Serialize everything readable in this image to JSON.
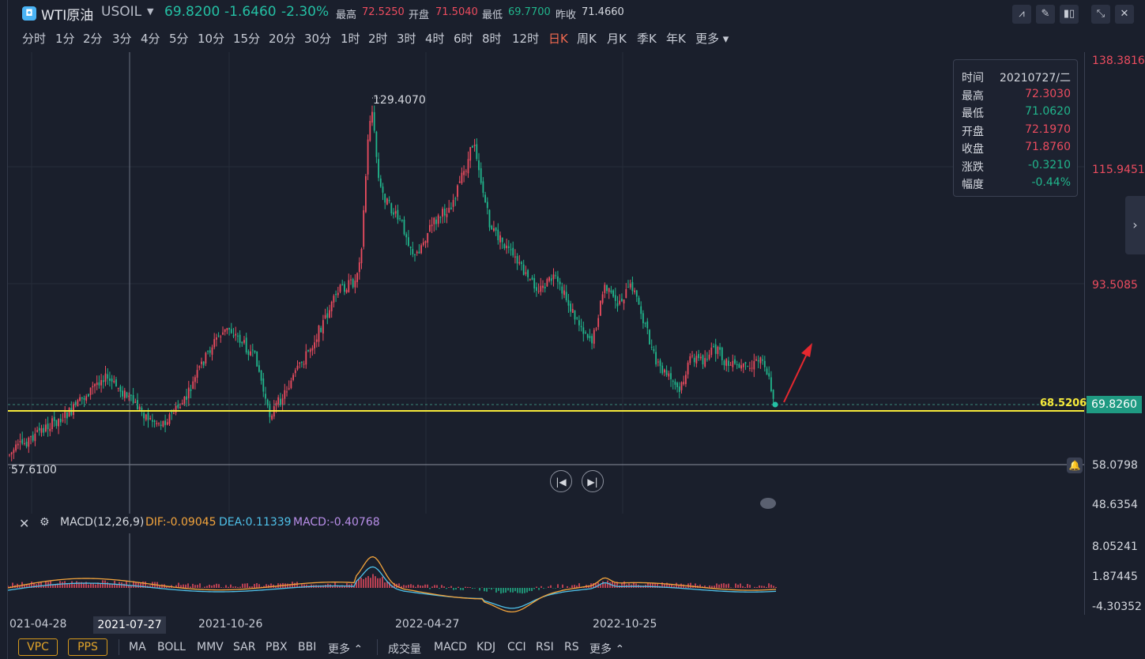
{
  "header": {
    "symbol_name": "WTI原油",
    "symbol_code": "USOIL",
    "last_price": "69.8200",
    "change": "-1.6460",
    "change_pct": "-2.30%",
    "high_label": "最高",
    "high_value": "72.5250",
    "open_label": "开盘",
    "open_value": "71.5040",
    "low_label": "最低",
    "low_value": "69.7700",
    "prev_close_label": "昨收",
    "prev_close_value": "71.4660"
  },
  "toolbar_icons": [
    "chart-type-icon",
    "draw-icon",
    "candle-icon",
    "fullscreen-icon",
    "close-icon"
  ],
  "periods": [
    "分时",
    "1分",
    "2分",
    "3分",
    "4分",
    "5分",
    "10分",
    "15分",
    "20分",
    "30分",
    "1时",
    "2时",
    "3时",
    "4时",
    "6时",
    "8时",
    "12时",
    "日K",
    "周K",
    "月K",
    "季K",
    "年K",
    "更多"
  ],
  "active_period": "日K",
  "price_axis": {
    "labels": [
      "138.3816",
      "115.9451",
      "93.5085",
      "58.0798",
      "48.6354"
    ],
    "current_price_tag": "69.8260",
    "yellow_line_label": "68.5206"
  },
  "extremes": {
    "high": "129.4070",
    "low": "57.6100"
  },
  "tooltip": {
    "rows": [
      {
        "k": "时间",
        "v": "20210727/二"
      },
      {
        "k": "最高",
        "v": "72.3030"
      },
      {
        "k": "最低",
        "v": "71.0620"
      },
      {
        "k": "开盘",
        "v": "72.1970"
      },
      {
        "k": "收盘",
        "v": "71.8760"
      },
      {
        "k": "涨跌",
        "v": "-0.3210"
      },
      {
        "k": "幅度",
        "v": "-0.44%"
      }
    ]
  },
  "macd": {
    "title": "MACD(12,26,9)",
    "dif": "DIF:-0.09045",
    "dea": "DEA:0.11339",
    "macd": "MACD:-0.40768",
    "axis_labels": [
      "8.05241",
      "1.87445",
      "-4.30352"
    ]
  },
  "dates": [
    "021-04-28",
    "2021-07-27",
    "2021-10-26",
    "2022-04-27",
    "2022-10-25"
  ],
  "selected_date": "2021-07-27",
  "bottom": {
    "vpc": "VPC",
    "pps": "PPS",
    "indicators_main": [
      "MA",
      "BOLL",
      "MMV",
      "SAR",
      "PBX",
      "BBI"
    ],
    "more1": "更多",
    "indicators_sub": [
      "成交量",
      "MACD",
      "KDJ",
      "CCI",
      "RSI",
      "RS"
    ],
    "more2": "更多"
  },
  "colors": {
    "up": "#ec4c5f",
    "down": "#21b68c",
    "yellow_line": "#f6ea3a",
    "accent": "#f26a50"
  }
}
